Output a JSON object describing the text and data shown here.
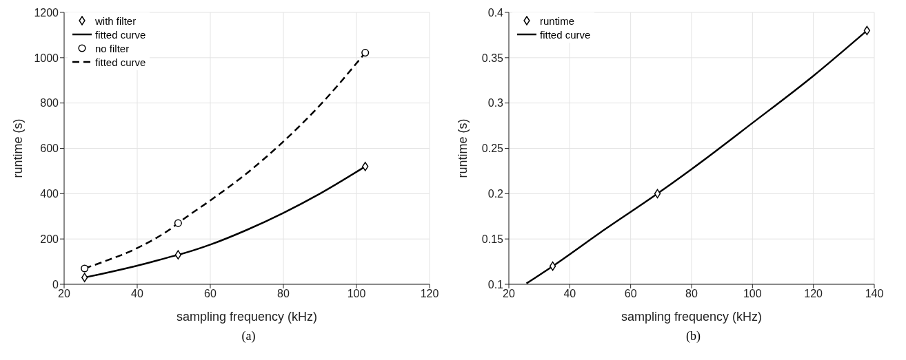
{
  "chart_data": [
    {
      "type": "line",
      "xlabel": "sampling frequency (kHz)",
      "ylabel": "runtime (s)",
      "xlim": [
        20,
        120
      ],
      "xticks": [
        20,
        40,
        60,
        80,
        100,
        120
      ],
      "ylim": [
        0,
        1200
      ],
      "yticks": [
        0,
        200,
        400,
        600,
        800,
        1000,
        1200
      ],
      "grid": true,
      "legend": "top left",
      "annotations": [
        "(a)"
      ],
      "series": [
        {
          "name": "with filter",
          "type": "scatter",
          "marker": "diamond",
          "color": "#000000",
          "x": [
            25.6,
            51.2,
            102.4
          ],
          "values": [
            30,
            130,
            520
          ]
        },
        {
          "name": "fitted curve",
          "type": "line",
          "line_style": "solid",
          "color": "#000000",
          "x": [
            25.6,
            30,
            40,
            50,
            51.2,
            60,
            70,
            80,
            90,
            102.4
          ],
          "values": [
            30,
            45,
            82,
            125,
            130,
            175,
            240,
            315,
            400,
            520
          ]
        },
        {
          "name": "no filter",
          "type": "scatter",
          "marker": "circle",
          "color": "#000000",
          "x": [
            25.6,
            51.2,
            102.4
          ],
          "values": [
            70,
            270,
            1022
          ]
        },
        {
          "name": "fitted curve",
          "type": "line",
          "line_style": "dashed",
          "color": "#000000",
          "x": [
            25.6,
            30,
            40,
            50,
            51.2,
            60,
            70,
            80,
            90,
            102.4
          ],
          "values": [
            70,
            95,
            160,
            255,
            270,
            370,
            490,
            630,
            790,
            1022
          ]
        }
      ]
    },
    {
      "type": "line",
      "xlabel": "sampling frequency (kHz)",
      "ylabel": "runtime (s)",
      "xlim": [
        20,
        140
      ],
      "xticks": [
        20,
        40,
        60,
        80,
        100,
        120,
        140
      ],
      "ylim": [
        0.1,
        0.4
      ],
      "yticks": [
        0.1,
        0.15,
        0.2,
        0.25,
        0.3,
        0.35,
        0.4
      ],
      "grid": true,
      "legend": "top left",
      "annotations": [
        "(b)"
      ],
      "series": [
        {
          "name": "runtime",
          "type": "scatter",
          "marker": "diamond",
          "color": "#000000",
          "x": [
            34.4,
            68.8,
            137.6
          ],
          "values": [
            0.12,
            0.2,
            0.38
          ]
        },
        {
          "name": "fitted curve",
          "type": "line",
          "line_style": "solid",
          "color": "#000000",
          "x": [
            25.8,
            34.4,
            50,
            68.8,
            80,
            100,
            120,
            137.6
          ],
          "values": [
            0.101,
            0.12,
            0.157,
            0.2,
            0.227,
            0.278,
            0.33,
            0.38
          ]
        }
      ]
    }
  ]
}
